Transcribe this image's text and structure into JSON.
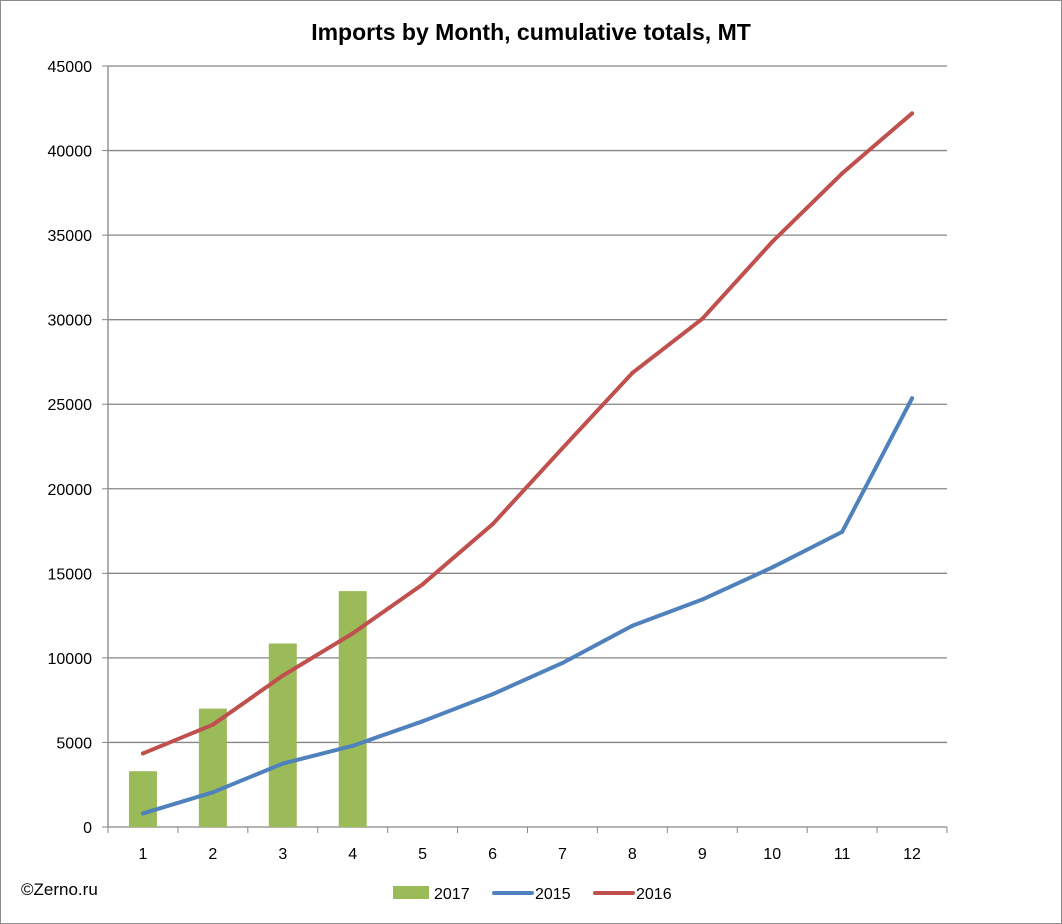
{
  "chart_data": {
    "type": "bar",
    "title": "Imports by Month, cumulative totals, MT",
    "categories": [
      "1",
      "2",
      "3",
      "4",
      "5",
      "6",
      "7",
      "8",
      "9",
      "10",
      "11",
      "12"
    ],
    "ylim": [
      0,
      45000
    ],
    "yticks": [
      0,
      5000,
      10000,
      15000,
      20000,
      25000,
      30000,
      35000,
      40000,
      45000
    ],
    "grid": true,
    "legend_position": "bottom",
    "series": [
      {
        "name": "2017",
        "type": "bar",
        "color": "#9BBB59",
        "values": [
          3300,
          7000,
          10850,
          13950,
          null,
          null,
          null,
          null,
          null,
          null,
          null,
          null
        ]
      },
      {
        "name": "2015",
        "type": "line",
        "color": "#4F81BD",
        "values": [
          800,
          2050,
          3750,
          4800,
          6250,
          7850,
          9700,
          11900,
          13450,
          15350,
          17450,
          25350
        ]
      },
      {
        "name": "2016",
        "type": "line",
        "color": "#C0504D",
        "values": [
          4350,
          6050,
          8950,
          11450,
          14350,
          17900,
          22400,
          26850,
          30050,
          34600,
          38650,
          42200
        ]
      }
    ]
  },
  "copyright": "©Zerno.ru"
}
